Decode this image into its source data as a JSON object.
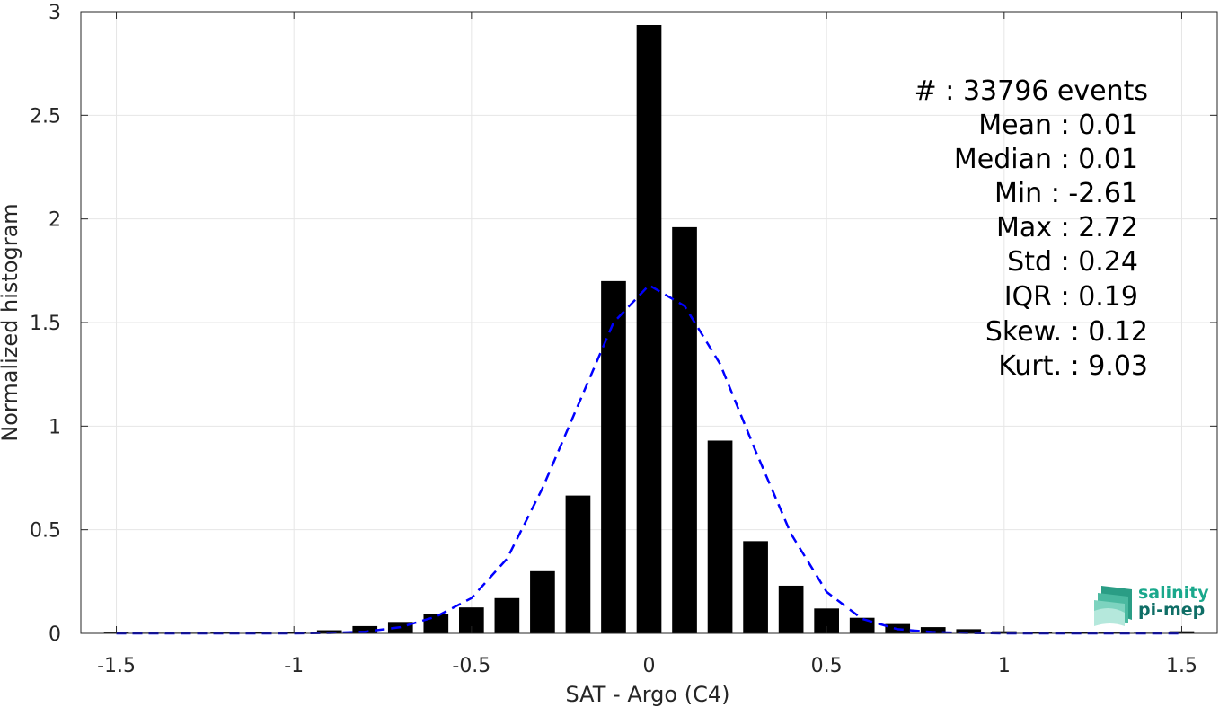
{
  "chart_data": {
    "type": "bar",
    "xlabel": "SAT - Argo (C4)",
    "ylabel": "Normalized histogram",
    "xlim": [
      -1.6,
      1.6
    ],
    "ylim": [
      0,
      3
    ],
    "xticks": [
      "-1.5",
      "-1",
      "-0.5",
      "0",
      "0.5",
      "1",
      "1.5"
    ],
    "xtick_values": [
      -1.5,
      -1,
      -0.5,
      0,
      0.5,
      1,
      1.5
    ],
    "yticks": [
      "0",
      "0.5",
      "1",
      "1.5",
      "2",
      "2.5",
      "3"
    ],
    "ytick_values": [
      0,
      0.5,
      1,
      1.5,
      2,
      2.5,
      3
    ],
    "grid": true,
    "bar_color": "#000000",
    "fit_color": "#0000ff",
    "bar_width": 0.07,
    "x": [
      -1.5,
      -1.4,
      -1.3,
      -1.2,
      -1.1,
      -1.0,
      -0.9,
      -0.8,
      -0.7,
      -0.6,
      -0.5,
      -0.4,
      -0.3,
      -0.2,
      -0.1,
      0.0,
      0.1,
      0.2,
      0.3,
      0.4,
      0.5,
      0.6,
      0.7,
      0.8,
      0.9,
      1.0,
      1.1,
      1.2,
      1.3,
      1.4,
      1.5
    ],
    "values": [
      0.004,
      0.003,
      0.003,
      0.004,
      0.005,
      0.007,
      0.015,
      0.035,
      0.055,
      0.095,
      0.125,
      0.17,
      0.3,
      0.665,
      1.7,
      2.935,
      1.96,
      0.93,
      0.445,
      0.23,
      0.12,
      0.075,
      0.045,
      0.03,
      0.02,
      0.01,
      0.007,
      0.006,
      0.004,
      0.003,
      0.01
    ],
    "fit_curve": {
      "x": [
        -1.5,
        -1.4,
        -1.3,
        -1.2,
        -1.1,
        -1.0,
        -0.9,
        -0.8,
        -0.7,
        -0.6,
        -0.5,
        -0.4,
        -0.3,
        -0.2,
        -0.1,
        0.0,
        0.1,
        0.2,
        0.3,
        0.4,
        0.5,
        0.6,
        0.7,
        0.8,
        0.9,
        1.0,
        1.1,
        1.2,
        1.3,
        1.4,
        1.5
      ],
      "y": [
        0.0,
        0.0,
        0.0,
        0.0,
        0.0,
        0.0,
        0.002,
        0.008,
        0.03,
        0.08,
        0.17,
        0.36,
        0.7,
        1.1,
        1.5,
        1.68,
        1.58,
        1.3,
        0.88,
        0.48,
        0.2,
        0.07,
        0.02,
        0.006,
        0.002,
        0.0,
        0.0,
        0.0,
        0.0,
        0.0,
        0.0
      ]
    },
    "annotations": [
      "#  : 33796 events",
      "Mean : 0.01",
      "Median : 0.01",
      "Min : -2.61",
      "Max : 2.72",
      "Std : 0.24",
      "IQR : 0.19",
      "Skew. : 0.12",
      "Kurt. : 9.03"
    ]
  },
  "logo": {
    "line1": "salinity",
    "line2": "pi-mep",
    "icon": "wave-layers-icon"
  }
}
